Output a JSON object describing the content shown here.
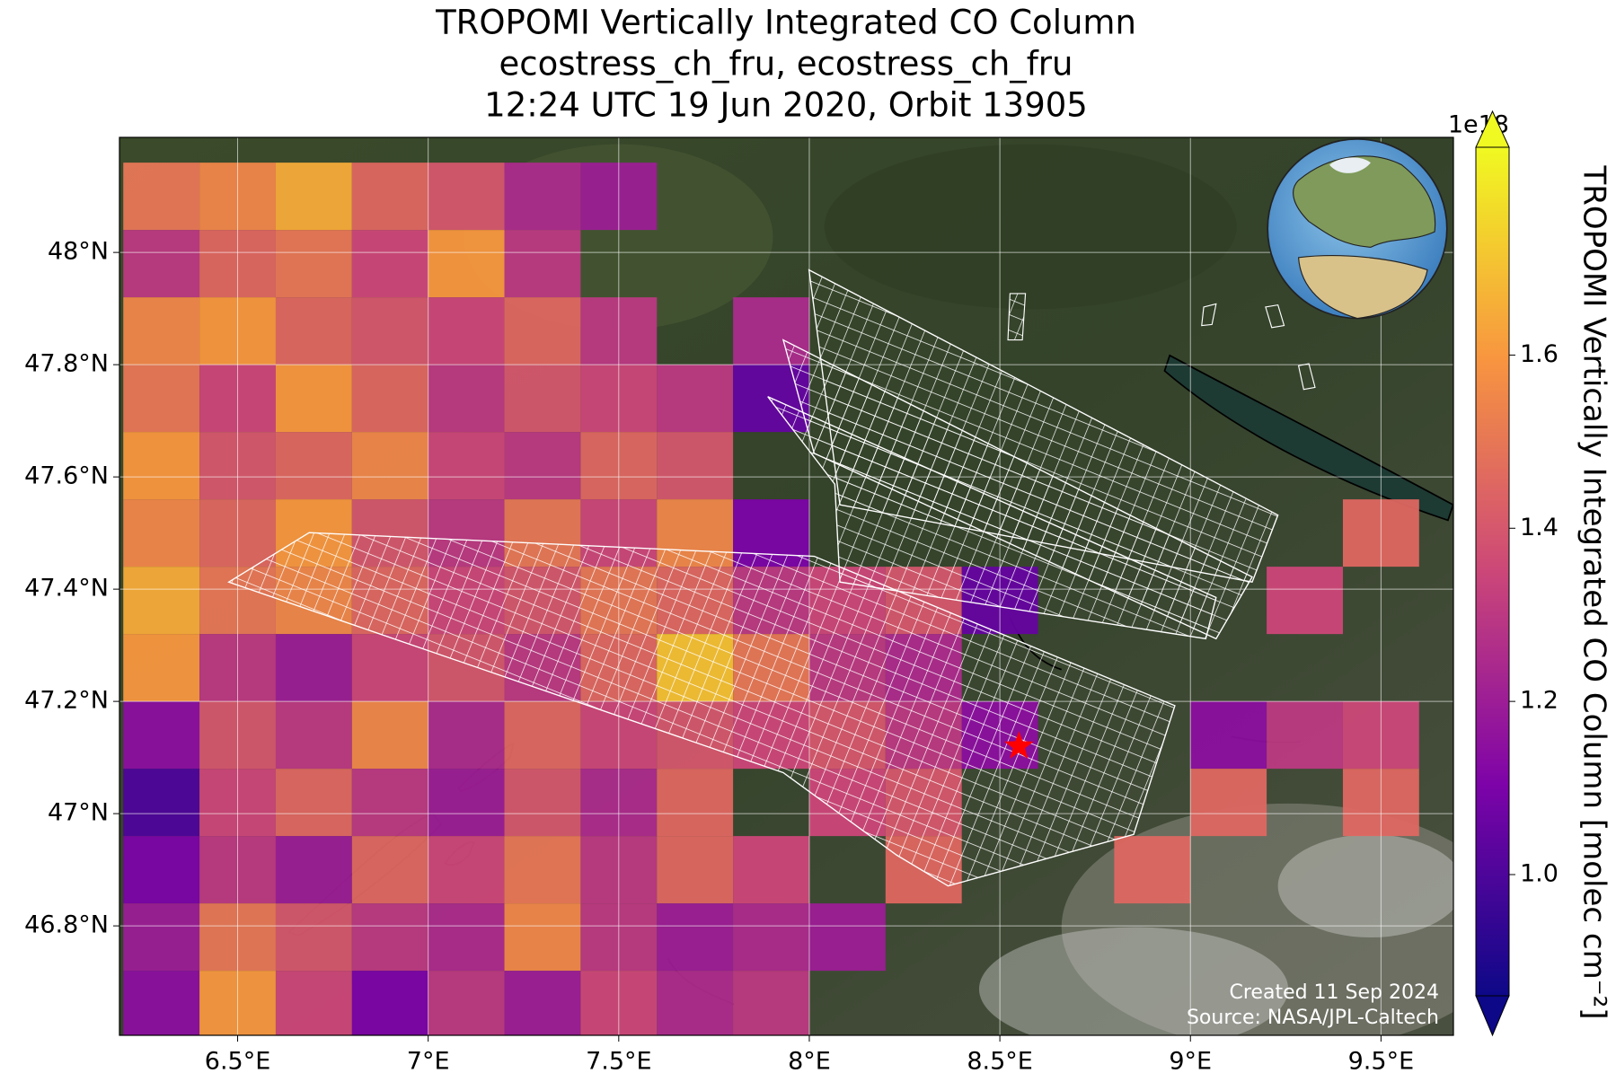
{
  "chart_data": {
    "type": "heatmap",
    "title": [
      "TROPOMI Vertically Integrated CO Column",
      "ecostress_ch_fru, ecostress_ch_fru",
      "12:24 UTC 19 Jun 2020, Orbit 13905"
    ],
    "xlim": [
      6.19,
      9.69
    ],
    "ylim": [
      46.605,
      48.205
    ],
    "xticks": [
      {
        "value": 6.5,
        "label": "6.5°E"
      },
      {
        "value": 7,
        "label": "7°E"
      },
      {
        "value": 7.5,
        "label": "7.5°E"
      },
      {
        "value": 8,
        "label": "8°E"
      },
      {
        "value": 8.5,
        "label": "8.5°E"
      },
      {
        "value": 9,
        "label": "9°E"
      },
      {
        "value": 9.5,
        "label": "9.5°E"
      }
    ],
    "yticks": [
      {
        "value": 48,
        "label": "48°N"
      },
      {
        "value": 47.8,
        "label": "47.8°N"
      },
      {
        "value": 47.6,
        "label": "47.6°N"
      },
      {
        "value": 47.4,
        "label": "47.4°N"
      },
      {
        "value": 47.2,
        "label": "47.2°N"
      },
      {
        "value": 47,
        "label": "47°N"
      },
      {
        "value": 46.8,
        "label": "46.8°N"
      }
    ],
    "grid": true,
    "lons": [
      6.3,
      6.5,
      6.7,
      6.9,
      7.1,
      7.3,
      7.5,
      7.7,
      7.9,
      8.1,
      8.3,
      8.5,
      8.7,
      8.9,
      9.1,
      9.3,
      9.5
    ],
    "lats": [
      48.1,
      47.98,
      47.86,
      47.74,
      47.62,
      47.5,
      47.38,
      47.26,
      47.14,
      47.02,
      46.9,
      46.78,
      46.66
    ],
    "z": [
      [
        1.5,
        1.55,
        1.65,
        1.45,
        1.4,
        1.25,
        1.2,
        null,
        null,
        null,
        null,
        null,
        null,
        null,
        null,
        null,
        null
      ],
      [
        1.3,
        1.45,
        1.5,
        1.35,
        1.6,
        1.3,
        null,
        null,
        null,
        null,
        null,
        null,
        null,
        null,
        null,
        null,
        null
      ],
      [
        1.55,
        1.6,
        1.45,
        1.4,
        1.35,
        1.45,
        1.3,
        null,
        1.25,
        null,
        null,
        null,
        null,
        null,
        null,
        null,
        null
      ],
      [
        1.5,
        1.35,
        1.6,
        1.45,
        1.3,
        1.4,
        1.35,
        1.3,
        1.05,
        null,
        null,
        null,
        null,
        null,
        null,
        null,
        null
      ],
      [
        1.6,
        1.4,
        1.45,
        1.55,
        1.35,
        1.3,
        1.45,
        1.4,
        null,
        null,
        null,
        null,
        null,
        null,
        null,
        null,
        null
      ],
      [
        1.55,
        1.45,
        1.6,
        1.4,
        1.3,
        1.5,
        1.35,
        1.55,
        1.1,
        null,
        null,
        null,
        null,
        null,
        null,
        null,
        1.45
      ],
      [
        1.65,
        1.5,
        1.55,
        1.45,
        1.35,
        1.4,
        1.5,
        1.45,
        1.3,
        1.35,
        1.4,
        1.05,
        null,
        null,
        null,
        1.35,
        null
      ],
      [
        1.6,
        1.3,
        1.2,
        1.35,
        1.4,
        1.3,
        1.45,
        1.7,
        1.5,
        1.3,
        1.25,
        null,
        null,
        null,
        null,
        null,
        null
      ],
      [
        1.15,
        1.4,
        1.3,
        1.55,
        1.25,
        1.45,
        1.35,
        1.4,
        1.35,
        1.4,
        1.3,
        1.15,
        null,
        null,
        1.15,
        1.3,
        1.35
      ],
      [
        1.0,
        1.35,
        1.45,
        1.3,
        1.2,
        1.4,
        1.25,
        1.45,
        null,
        1.35,
        1.4,
        null,
        null,
        null,
        1.45,
        null,
        1.45
      ],
      [
        1.1,
        1.3,
        1.2,
        1.45,
        1.35,
        1.5,
        1.3,
        1.45,
        1.35,
        null,
        1.45,
        null,
        null,
        1.45,
        null,
        null,
        null
      ],
      [
        1.2,
        1.5,
        1.4,
        1.3,
        1.25,
        1.55,
        1.3,
        1.2,
        1.25,
        1.2,
        null,
        null,
        null,
        null,
        null,
        null,
        null
      ],
      [
        1.15,
        1.6,
        1.35,
        1.1,
        1.3,
        1.2,
        1.35,
        1.25,
        1.3,
        null,
        null,
        null,
        null,
        null,
        null,
        null,
        null
      ]
    ],
    "marker": {
      "lon": 8.55,
      "lat": 47.12,
      "color": "#ff0000"
    },
    "colorbar": {
      "label": "TROPOMI Vertically Integrated CO Column [molec cm⁻²]",
      "offset_label": "1e18",
      "colormap": "plasma",
      "lim": [
        0.86,
        1.84
      ],
      "ticks": [
        {
          "value": 1,
          "label": "1.0"
        },
        1.2,
        1.4,
        1.6
      ]
    },
    "footer": {
      "created": "Created 11 Sep 2024",
      "source": "Source: NASA/JPL-Caltech"
    }
  }
}
